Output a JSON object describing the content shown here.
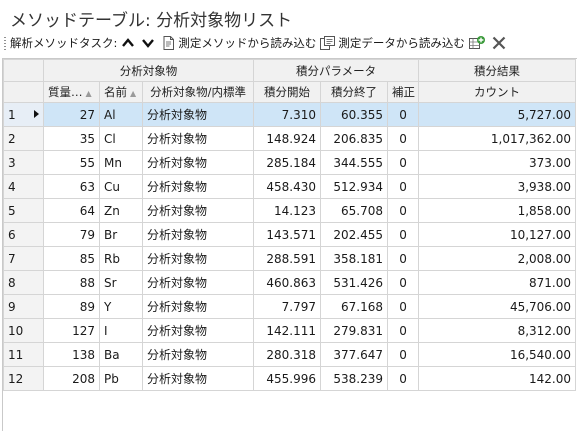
{
  "window": {
    "title": "メソッドテーブル: 分析対象物リスト"
  },
  "toolbar": {
    "label": "解析メソッドタスク:",
    "load_method": "測定メソッドから読み込む",
    "load_data": "測定データから読み込む",
    "icons": [
      "chevron-up-icon",
      "chevron-down-icon",
      "document-import-icon",
      "document-import-icon",
      "add-row-icon",
      "close-icon"
    ],
    "colors": {
      "add_icon": "#3a9a3a",
      "close_icon": "#555555"
    }
  },
  "table": {
    "groups": {
      "analyte": "分析対象物",
      "integration": "積分パラメータ",
      "result": "積分結果"
    },
    "columns": {
      "mass": "質量…",
      "name": "名前",
      "type": "分析対象物/内標準",
      "start": "積分開始",
      "end": "積分終了",
      "correction": "補正",
      "count": "カウント"
    },
    "sort_indicator": "▲",
    "selected_row_color": "#cfe5f7",
    "rows": [
      {
        "n": "1",
        "mass": "27",
        "name": "Al",
        "type": "分析対象物",
        "start": "7.310",
        "end": "60.355",
        "corr": "0",
        "count": "5,727.00",
        "selected": true
      },
      {
        "n": "2",
        "mass": "35",
        "name": "Cl",
        "type": "分析対象物",
        "start": "148.924",
        "end": "206.835",
        "corr": "0",
        "count": "1,017,362.00"
      },
      {
        "n": "3",
        "mass": "55",
        "name": "Mn",
        "type": "分析対象物",
        "start": "285.184",
        "end": "344.555",
        "corr": "0",
        "count": "373.00"
      },
      {
        "n": "4",
        "mass": "63",
        "name": "Cu",
        "type": "分析対象物",
        "start": "458.430",
        "end": "512.934",
        "corr": "0",
        "count": "3,938.00"
      },
      {
        "n": "5",
        "mass": "64",
        "name": "Zn",
        "type": "分析対象物",
        "start": "14.123",
        "end": "65.708",
        "corr": "0",
        "count": "1,858.00"
      },
      {
        "n": "6",
        "mass": "79",
        "name": "Br",
        "type": "分析対象物",
        "start": "143.571",
        "end": "202.455",
        "corr": "0",
        "count": "10,127.00"
      },
      {
        "n": "7",
        "mass": "85",
        "name": "Rb",
        "type": "分析対象物",
        "start": "288.591",
        "end": "358.181",
        "corr": "0",
        "count": "2,008.00"
      },
      {
        "n": "8",
        "mass": "88",
        "name": "Sr",
        "type": "分析対象物",
        "start": "460.863",
        "end": "531.426",
        "corr": "0",
        "count": "871.00"
      },
      {
        "n": "9",
        "mass": "89",
        "name": "Y",
        "type": "分析対象物",
        "start": "7.797",
        "end": "67.168",
        "corr": "0",
        "count": "45,706.00"
      },
      {
        "n": "10",
        "mass": "127",
        "name": "I",
        "type": "分析対象物",
        "start": "142.111",
        "end": "279.831",
        "corr": "0",
        "count": "8,312.00"
      },
      {
        "n": "11",
        "mass": "138",
        "name": "Ba",
        "type": "分析対象物",
        "start": "280.318",
        "end": "377.647",
        "corr": "0",
        "count": "16,540.00"
      },
      {
        "n": "12",
        "mass": "208",
        "name": "Pb",
        "type": "分析対象物",
        "start": "455.996",
        "end": "538.239",
        "corr": "0",
        "count": "142.00"
      }
    ]
  }
}
